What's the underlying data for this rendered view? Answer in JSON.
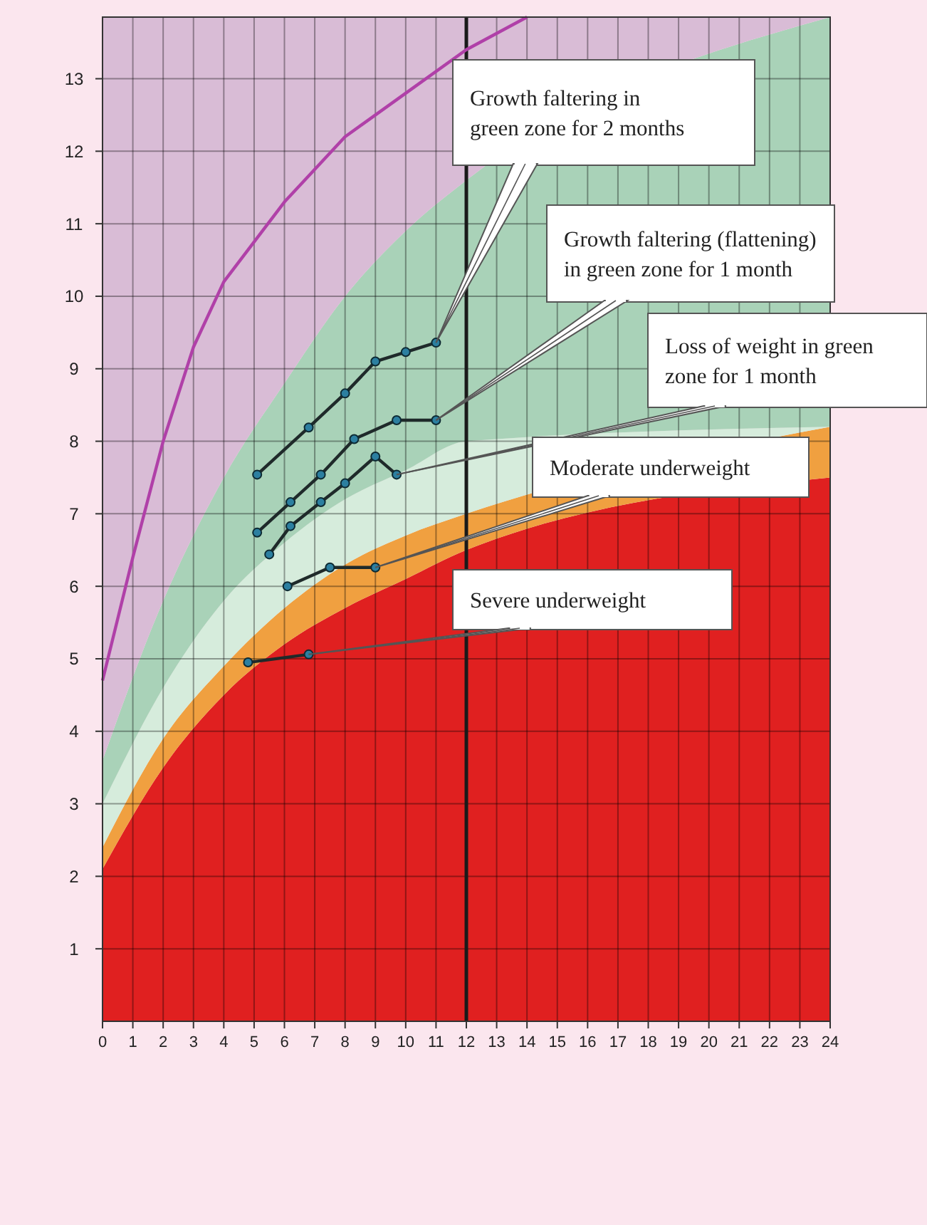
{
  "chart_data": {
    "type": "line",
    "xlim": [
      0,
      24
    ],
    "ylim": [
      0,
      13.85
    ],
    "xticks": [
      0,
      1,
      2,
      3,
      4,
      5,
      6,
      7,
      8,
      9,
      10,
      11,
      12,
      13,
      14,
      15,
      16,
      17,
      18,
      19,
      20,
      21,
      22,
      23,
      24
    ],
    "yticks": [
      1,
      2,
      3,
      4,
      5,
      6,
      7,
      8,
      9,
      10,
      11,
      12,
      13
    ],
    "grid": true,
    "stacked": true,
    "ref_lines": [
      {
        "axis": "x",
        "value": 12,
        "color": "#1a1a1a"
      }
    ],
    "series": [
      {
        "type": "area",
        "color": "#e02020",
        "x": [
          0,
          2,
          4,
          6,
          8,
          10,
          12,
          24
        ],
        "values": [
          2.1,
          3.5,
          4.5,
          5.2,
          5.7,
          6.1,
          6.5,
          7.5
        ]
      },
      {
        "type": "area",
        "color": "#f0a040",
        "x": [
          0,
          2,
          4,
          6,
          8,
          10,
          12,
          24
        ],
        "values": [
          0.3,
          0.4,
          0.4,
          0.5,
          0.6,
          0.6,
          0.5,
          0.7
        ]
      },
      {
        "type": "area",
        "color": "#d6ecdc",
        "x": [
          0,
          2,
          4,
          6,
          8,
          10,
          12,
          24
        ],
        "values": [
          0.6,
          0.7,
          0.9,
          0.9,
          0.9,
          0.9,
          1.0,
          0
        ]
      },
      {
        "type": "area",
        "color": "#a9d2b8",
        "x": [
          0,
          2,
          4,
          6,
          8,
          10,
          12,
          24
        ],
        "values": [
          0.6,
          1.2,
          1.7,
          2.2,
          2.8,
          3.3,
          3.6,
          5.65
        ]
      },
      {
        "type": "area",
        "color": "#d9bcd6",
        "x": [
          0,
          2,
          4,
          6,
          8,
          10,
          12,
          24
        ],
        "values": [
          10.25,
          8.05,
          6.35,
          5.05,
          3.85,
          2.95,
          2.25,
          0
        ]
      },
      {
        "color": "#b040a8",
        "x": [
          0,
          1,
          2,
          3,
          4,
          6,
          8,
          10,
          12,
          14
        ],
        "values": [
          4.7,
          6.4,
          8.0,
          9.3,
          10.2,
          11.3,
          12.2,
          12.8,
          13.4,
          13.85
        ]
      },
      {
        "color": "#1f2a2a",
        "marker": "circle",
        "x": [
          5.1,
          6.8,
          8.0,
          9.0,
          10.0,
          11.0
        ],
        "values": [
          7.54,
          8.19,
          8.66,
          9.1,
          9.23,
          9.36
        ]
      },
      {
        "color": "#1f2a2a",
        "marker": "circle",
        "x": [
          5.1,
          6.2,
          7.2,
          8.3,
          9.7,
          11.0
        ],
        "values": [
          6.74,
          7.16,
          7.54,
          8.03,
          8.29,
          8.29
        ]
      },
      {
        "color": "#1f2a2a",
        "marker": "circle",
        "x": [
          5.5,
          6.2,
          7.2,
          8.0,
          9.0,
          9.7
        ],
        "values": [
          6.44,
          6.83,
          7.16,
          7.42,
          7.79,
          7.54
        ]
      },
      {
        "color": "#1f2a2a",
        "marker": "circle",
        "x": [
          6.1,
          7.5,
          9.0
        ],
        "values": [
          6.0,
          6.26,
          6.26
        ]
      },
      {
        "color": "#1f2a2a",
        "marker": "circle",
        "x": [
          4.8,
          6.8
        ],
        "values": [
          4.95,
          5.06
        ]
      }
    ],
    "annotations": [
      {
        "text": "Growth faltering in green zone for 2 months",
        "x": 11.0,
        "y": 9.36
      },
      {
        "text": "Growth faltering (flattening) in green zone for 1 month",
        "x": 11.0,
        "y": 8.29
      },
      {
        "text": "Loss of weight in green zone for 1 month",
        "x": 9.7,
        "y": 7.54
      },
      {
        "text": "Moderate underweight",
        "x": 9.0,
        "y": 6.26
      },
      {
        "text": "Severe underweight",
        "x": 6.8,
        "y": 5.06
      }
    ]
  }
}
